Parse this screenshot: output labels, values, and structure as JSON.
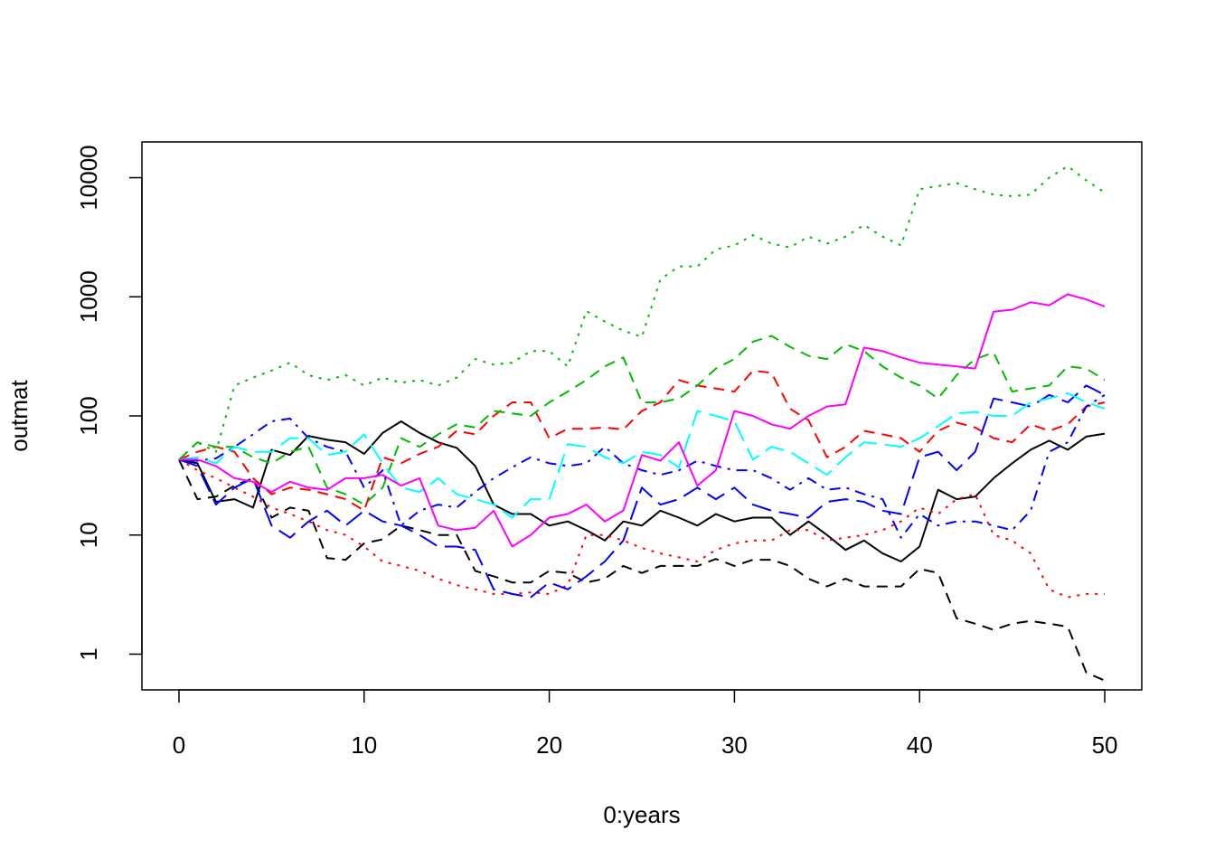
{
  "chart_data": {
    "type": "line",
    "title": "",
    "xlabel": "0:years",
    "ylabel": "outmat",
    "xlim": [
      -2,
      52
    ],
    "ylim_log10": [
      -0.3,
      4.3
    ],
    "y_scale": "log",
    "grid": false,
    "legend": "none",
    "x_ticks": [
      0,
      10,
      20,
      30,
      40,
      50
    ],
    "x_tick_labels": [
      "0",
      "10",
      "20",
      "30",
      "40",
      "50"
    ],
    "y_ticks": [
      1,
      10,
      100,
      1000,
      10000
    ],
    "y_tick_labels": [
      "1",
      "10",
      "100",
      "1000",
      "10000"
    ],
    "x": [
      0,
      1,
      2,
      3,
      4,
      5,
      6,
      7,
      8,
      9,
      10,
      11,
      12,
      13,
      14,
      15,
      16,
      17,
      18,
      19,
      20,
      21,
      22,
      23,
      24,
      25,
      26,
      27,
      28,
      29,
      30,
      31,
      32,
      33,
      34,
      35,
      36,
      37,
      38,
      39,
      40,
      41,
      42,
      43,
      44,
      45,
      46,
      47,
      48,
      49,
      50
    ],
    "series": [
      {
        "color": "#000000",
        "dash": "solid",
        "values": [
          43,
          40,
          19,
          20,
          17,
          52,
          47,
          68,
          63,
          60,
          48,
          72,
          90,
          72,
          60,
          54,
          38,
          18,
          15,
          15,
          12,
          13,
          11,
          9,
          13,
          12,
          16,
          14,
          12,
          15,
          13,
          14,
          14,
          10,
          13,
          10,
          7.5,
          9,
          7,
          6,
          8,
          24,
          20,
          21,
          30,
          40,
          52,
          62,
          52,
          67,
          71
        ]
      },
      {
        "color": "#000000",
        "dash": "dashed",
        "values": [
          43,
          20,
          21,
          26,
          30,
          14,
          17,
          16,
          6.4,
          6.2,
          8.5,
          9.2,
          12,
          11,
          10,
          10,
          5,
          4.5,
          4,
          4,
          5,
          4.8,
          4,
          4.3,
          5.5,
          4.8,
          5.5,
          5.5,
          5.5,
          6.3,
          5.5,
          6.2,
          6.2,
          5.5,
          4.3,
          3.7,
          4.3,
          3.7,
          3.7,
          3.7,
          5.2,
          4.8,
          2,
          1.8,
          1.6,
          1.8,
          1.9,
          1.8,
          1.7,
          0.7,
          0.6
        ]
      },
      {
        "color": "#ff0000",
        "dash": "dotted",
        "values": [
          43,
          35,
          30,
          25,
          21,
          17,
          15,
          13,
          11,
          10,
          8,
          6,
          5.5,
          5,
          4.3,
          3.8,
          3.5,
          3.2,
          3.2,
          3.3,
          3.2,
          3.8,
          10,
          10,
          9,
          7.8,
          7,
          6.5,
          6,
          7.5,
          8.5,
          9,
          9,
          11,
          11,
          9,
          9.5,
          10,
          11,
          13,
          17,
          15,
          20,
          22,
          10,
          9,
          7,
          3.5,
          3,
          3.2,
          3.2
        ]
      },
      {
        "color": "#ff0000",
        "dash": "dashed",
        "values": [
          43,
          50,
          55,
          50,
          30,
          22,
          25,
          24,
          22,
          20,
          16,
          45,
          40,
          48,
          55,
          75,
          70,
          100,
          130,
          130,
          65,
          78,
          78,
          80,
          77,
          110,
          130,
          200,
          180,
          170,
          160,
          240,
          230,
          115,
          92,
          45,
          55,
          75,
          70,
          65,
          50,
          75,
          88,
          80,
          65,
          60,
          85,
          75,
          85,
          120,
          130
        ]
      },
      {
        "color": "#00bb00",
        "dash": "dotted",
        "values": [
          43,
          60,
          50,
          180,
          210,
          240,
          280,
          220,
          200,
          220,
          180,
          210,
          190,
          200,
          180,
          210,
          300,
          270,
          280,
          350,
          350,
          260,
          760,
          620,
          520,
          460,
          1400,
          1800,
          1800,
          2500,
          2700,
          3300,
          2800,
          2600,
          3200,
          2800,
          3200,
          4000,
          3200,
          2700,
          8000,
          8500,
          9000,
          8000,
          7200,
          7000,
          7200,
          10000,
          12500,
          9500,
          7500
        ]
      },
      {
        "color": "#00bb00",
        "dash": "dashed",
        "values": [
          43,
          60,
          55,
          55,
          45,
          40,
          50,
          55,
          25,
          22,
          18,
          25,
          65,
          55,
          70,
          85,
          80,
          110,
          105,
          100,
          130,
          160,
          200,
          260,
          310,
          130,
          130,
          140,
          180,
          250,
          300,
          420,
          470,
          380,
          320,
          300,
          400,
          350,
          260,
          210,
          180,
          140,
          220,
          300,
          340,
          160,
          170,
          180,
          260,
          250,
          200
        ]
      },
      {
        "color": "#0000ff",
        "dash": "dashdot",
        "values": [
          43,
          42,
          44,
          55,
          70,
          90,
          95,
          65,
          55,
          50,
          25,
          35,
          12,
          16,
          18,
          17,
          23,
          30,
          37,
          45,
          40,
          38,
          40,
          55,
          40,
          35,
          32,
          35,
          42,
          38,
          35,
          35,
          30,
          24,
          30,
          24,
          25,
          22,
          20,
          9.5,
          15,
          12,
          13,
          13,
          12,
          11,
          16,
          50,
          60,
          120,
          150
        ]
      },
      {
        "color": "#0000ff",
        "dash": "longdash",
        "values": [
          43,
          38,
          18,
          25,
          30,
          12,
          9.5,
          13,
          16,
          12,
          16,
          13,
          12,
          10,
          8,
          8,
          7.5,
          3.5,
          3.2,
          3,
          4,
          3.5,
          4.5,
          6,
          9,
          25,
          18,
          20,
          25,
          20,
          25,
          18,
          16,
          15,
          14,
          19,
          20,
          19,
          16,
          15,
          45,
          50,
          35,
          50,
          140,
          130,
          120,
          150,
          130,
          180,
          150
        ]
      },
      {
        "color": "#00ffff",
        "dash": "longdash",
        "values": [
          43,
          45,
          40,
          55,
          50,
          50,
          65,
          65,
          47,
          50,
          70,
          40,
          25,
          23,
          30,
          22,
          20,
          18,
          14,
          20,
          20,
          58,
          55,
          45,
          40,
          50,
          47,
          37,
          110,
          100,
          90,
          43,
          55,
          50,
          40,
          32,
          45,
          60,
          58,
          55,
          65,
          82,
          105,
          108,
          100,
          100,
          130,
          140,
          155,
          130,
          115
        ]
      },
      {
        "color": "#ff00ff",
        "dash": "solid",
        "values": [
          43,
          43,
          38,
          30,
          28,
          23,
          28,
          25,
          24,
          30,
          30,
          32,
          26,
          30,
          12,
          11,
          11.5,
          16,
          8,
          10,
          14,
          15,
          18,
          13,
          16,
          47,
          42,
          60,
          26,
          35,
          110,
          100,
          85,
          78,
          100,
          120,
          125,
          375,
          350,
          310,
          280,
          270,
          260,
          250,
          750,
          780,
          900,
          850,
          1050,
          950,
          830
        ]
      }
    ]
  }
}
